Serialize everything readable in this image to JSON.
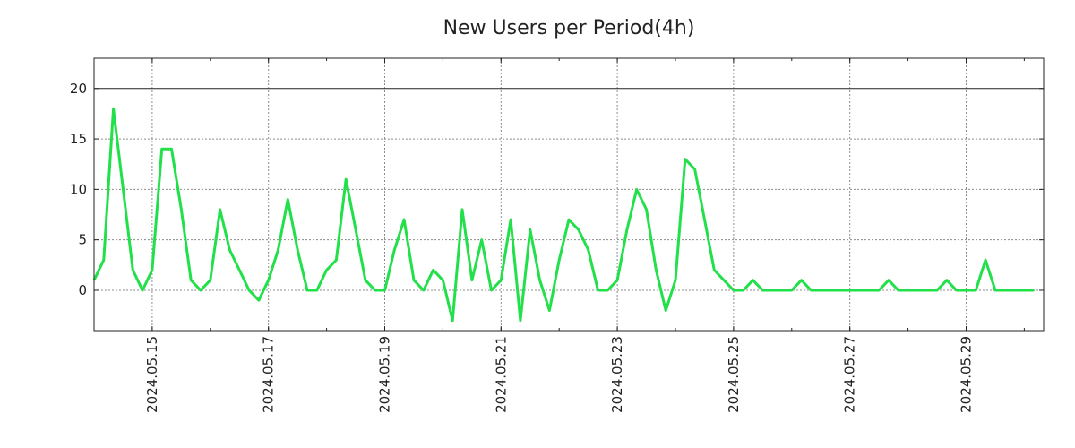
{
  "chart_data": {
    "type": "line",
    "title": "New Users per Period(4h)",
    "xlabel": "",
    "ylabel": "",
    "ylim": [
      -4,
      23
    ],
    "yticks": [
      0,
      5,
      10,
      15,
      20
    ],
    "reference_line": 20,
    "grid": true,
    "x_unit": "days since 2024-05-14 00:00",
    "xlim": [
      0,
      16.333
    ],
    "xticks": [
      {
        "label": "2024.05.15",
        "value": 1
      },
      {
        "label": "2024.05.17",
        "value": 3
      },
      {
        "label": "2024.05.19",
        "value": 5
      },
      {
        "label": "2024.05.21",
        "value": 7
      },
      {
        "label": "2024.05.23",
        "value": 9
      },
      {
        "label": "2024.05.25",
        "value": 11
      },
      {
        "label": "2024.05.27",
        "value": 13
      },
      {
        "label": "2024.05.29",
        "value": 15
      }
    ],
    "series": [
      {
        "name": "New Users",
        "color": "#22e04a",
        "step_days": 0.16667,
        "values": [
          1,
          3,
          18,
          10,
          2,
          0,
          2,
          14,
          14,
          8,
          1,
          0,
          1,
          8,
          4,
          2,
          0,
          -1,
          1,
          4,
          9,
          4,
          0,
          0,
          2,
          3,
          11,
          6,
          1,
          0,
          0,
          4,
          7,
          1,
          0,
          2,
          1,
          -3,
          8,
          1,
          5,
          0,
          1,
          7,
          -3,
          6,
          1,
          -2,
          3,
          7,
          6,
          4,
          0,
          0,
          1,
          6,
          10,
          8,
          2,
          -2,
          1,
          13,
          12,
          7,
          2,
          1,
          0,
          0,
          1,
          0,
          0,
          0,
          0,
          1,
          0,
          0,
          0,
          0,
          0,
          0,
          0,
          0,
          1,
          0,
          0,
          0,
          0,
          0,
          1,
          0,
          0,
          0,
          3,
          0,
          0,
          0,
          0,
          0
        ]
      }
    ]
  }
}
